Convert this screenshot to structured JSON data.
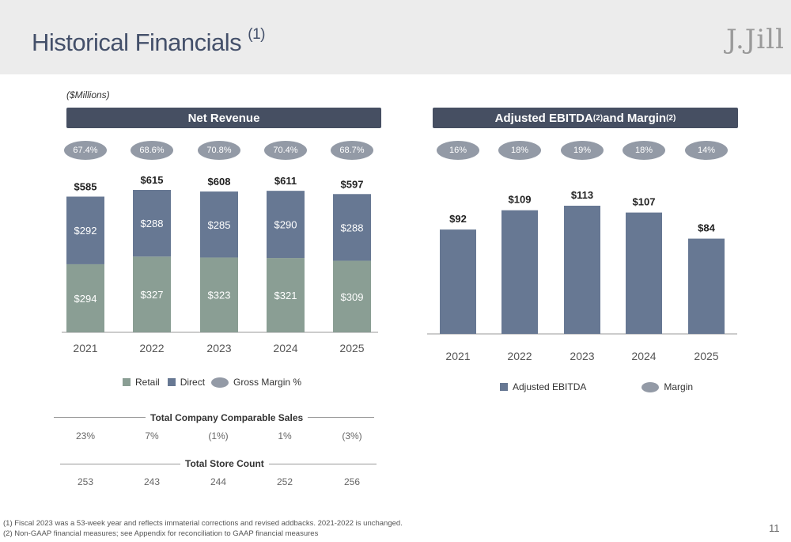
{
  "header": {
    "title": "Historical Financials",
    "title_sup": "(1)",
    "logo_text": "J.Jill"
  },
  "units_note": "($Millions)",
  "left_panel": {
    "banner": "Net Revenue"
  },
  "right_panel": {
    "banner": "Adjusted EBITDA",
    "banner_sup1": "(2)",
    "banner_mid": " and Margin",
    "banner_sup2": "(2)"
  },
  "colors": {
    "retail": "#8a9e94",
    "direct": "#677893",
    "ebitda": "#677893",
    "pill": "#939aa6",
    "banner": "#464f62"
  },
  "chart_data": [
    {
      "type": "bar",
      "stacked": true,
      "title": "Net Revenue",
      "categories": [
        "2021",
        "2022",
        "2023",
        "2024",
        "2025"
      ],
      "series": [
        {
          "name": "Retail",
          "values": [
            294,
            327,
            323,
            321,
            309
          ],
          "labels": [
            "$294",
            "$327",
            "$323",
            "$321",
            "$309"
          ]
        },
        {
          "name": "Direct",
          "values": [
            292,
            288,
            285,
            290,
            288
          ],
          "labels": [
            "$292",
            "$288",
            "$285",
            "$290",
            "$288"
          ]
        }
      ],
      "totals": [
        585,
        615,
        608,
        611,
        597
      ],
      "total_labels": [
        "$585",
        "$615",
        "$608",
        "$611",
        "$597"
      ],
      "gross_margin_labels": [
        "67.4%",
        "68.6%",
        "70.8%",
        "70.4%",
        "68.7%"
      ],
      "legend": {
        "retail": "Retail",
        "direct": "Direct",
        "margin": "Gross Margin %"
      },
      "ylim": [
        0,
        615
      ]
    },
    {
      "type": "bar",
      "title": "Adjusted EBITDA and Margin",
      "categories": [
        "2021",
        "2022",
        "2023",
        "2024",
        "2025"
      ],
      "values": [
        92,
        109,
        113,
        107,
        84
      ],
      "value_labels": [
        "$92",
        "$109",
        "$113",
        "$107",
        "$84"
      ],
      "margin_labels": [
        "16%",
        "18%",
        "19%",
        "18%",
        "14%"
      ],
      "legend": {
        "ebitda": "Adjusted EBITDA",
        "margin": "Margin"
      },
      "ylim": [
        0,
        113
      ]
    }
  ],
  "comp_sales": {
    "title": "Total Company Comparable Sales",
    "values": [
      "23%",
      "7%",
      "(1%)",
      "1%",
      "(3%)"
    ]
  },
  "store_count": {
    "title": "Total Store Count",
    "values": [
      "253",
      "243",
      "244",
      "252",
      "256"
    ]
  },
  "footnotes": [
    "(1)   Fiscal 2023 was a 53-week year and reflects immaterial corrections and revised addbacks. 2021-2022 is unchanged.",
    "(2)   Non-GAAP financial measures; see Appendix for reconciliation to GAAP financial measures"
  ],
  "page_number": "11"
}
